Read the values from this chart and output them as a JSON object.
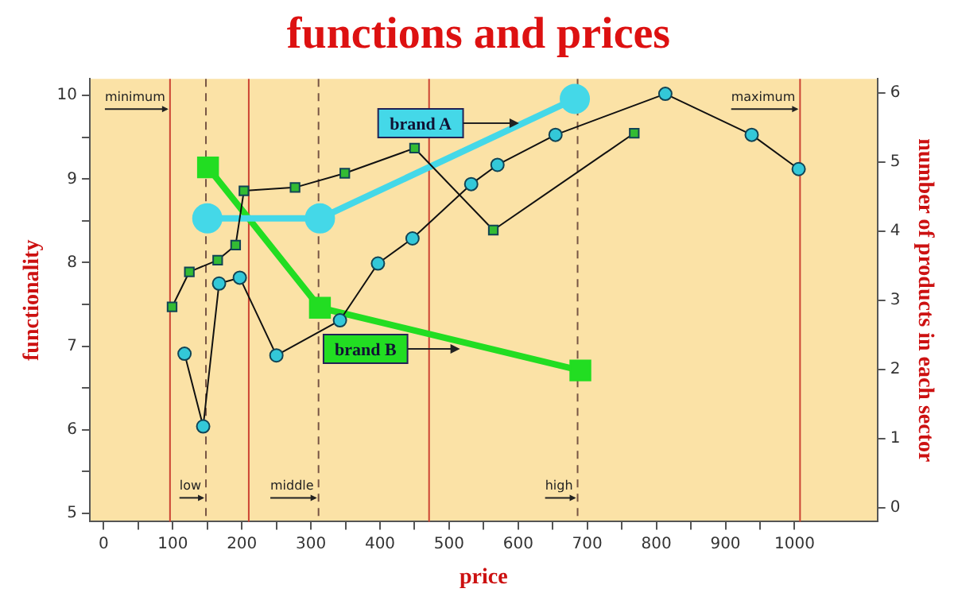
{
  "chart_data": {
    "type": "line",
    "title": "functions and prices",
    "xlabel": "price",
    "ylabel": "functionality",
    "y2label": "number of products in each sector",
    "xlim": [
      -20,
      1120
    ],
    "xticks": [
      0,
      {
        "value": 50,
        "label": null
      },
      100,
      {
        "value": 150,
        "label": null
      },
      200,
      {
        "value": 250,
        "label": null
      },
      300,
      {
        "value": 350,
        "label": null
      },
      400,
      {
        "value": 450,
        "label": null
      },
      500,
      {
        "value": 550,
        "label": null
      },
      600,
      {
        "value": 650,
        "label": null
      },
      700,
      {
        "value": 750,
        "label": null
      },
      800,
      {
        "value": 850,
        "label": null
      },
      900,
      {
        "value": 950,
        "label": null
      },
      1000
    ],
    "ylim": [
      4.9,
      10.2
    ],
    "yticks": [
      5,
      {
        "value": 5.5,
        "label": null
      },
      6,
      {
        "value": 6.5,
        "label": null
      },
      7,
      {
        "value": 7.5,
        "label": null
      },
      8,
      {
        "value": 8.5,
        "label": null
      },
      9,
      {
        "value": 9.5,
        "label": null
      },
      10
    ],
    "y2lim": [
      -0.2,
      6.2
    ],
    "y2ticks": [
      0,
      1,
      2,
      3,
      4,
      5,
      6
    ],
    "grid": false,
    "series": [
      {
        "color": "#33bb33",
        "marker": "square",
        "x": [
          99,
          124,
          165,
          191,
          203,
          277,
          349,
          450,
          564,
          768
        ],
        "values": [
          7.47,
          7.89,
          8.03,
          8.21,
          8.86,
          8.9,
          9.07,
          9.37,
          8.39,
          9.55
        ]
      },
      {
        "color": "#33c8d8",
        "marker": "circle",
        "x": [
          117,
          144,
          167,
          197,
          250,
          342,
          397,
          447,
          532,
          570,
          654,
          813,
          938,
          1006
        ],
        "values": [
          6.91,
          6.04,
          7.75,
          7.82,
          6.89,
          7.31,
          7.99,
          8.29,
          8.94,
          9.17,
          9.53,
          10.02,
          9.53,
          9.12
        ]
      },
      {
        "name": "brand A",
        "color": "#44d8e8",
        "marker": "circle",
        "x": [
          150,
          313,
          682
        ],
        "values": [
          8.53,
          8.53,
          9.96
        ]
      },
      {
        "name": "brand B",
        "color": "#22dd22",
        "marker": "square",
        "x": [
          151,
          313,
          690
        ],
        "values": [
          9.14,
          7.46,
          6.71
        ]
      }
    ],
    "ref_lines": [
      {
        "axis": "x",
        "value": 96,
        "label": "minimum",
        "color": "#cc4433",
        "line_style": "solid"
      },
      {
        "axis": "x",
        "value": 148,
        "label": "low",
        "color": "#775544",
        "line_style": "dashed"
      },
      {
        "axis": "x",
        "value": 210,
        "color": "#cc4433",
        "line_style": "solid"
      },
      {
        "axis": "x",
        "value": 311,
        "label": "middle",
        "color": "#775544",
        "line_style": "dashed"
      },
      {
        "axis": "x",
        "value": 471,
        "color": "#cc4433",
        "line_style": "solid"
      },
      {
        "axis": "x",
        "value": 686,
        "label": "high",
        "color": "#775544",
        "line_style": "dashed"
      },
      {
        "axis": "x",
        "value": 1008,
        "label": "maximum",
        "color": "#cc4433",
        "line_style": "solid"
      }
    ]
  }
}
